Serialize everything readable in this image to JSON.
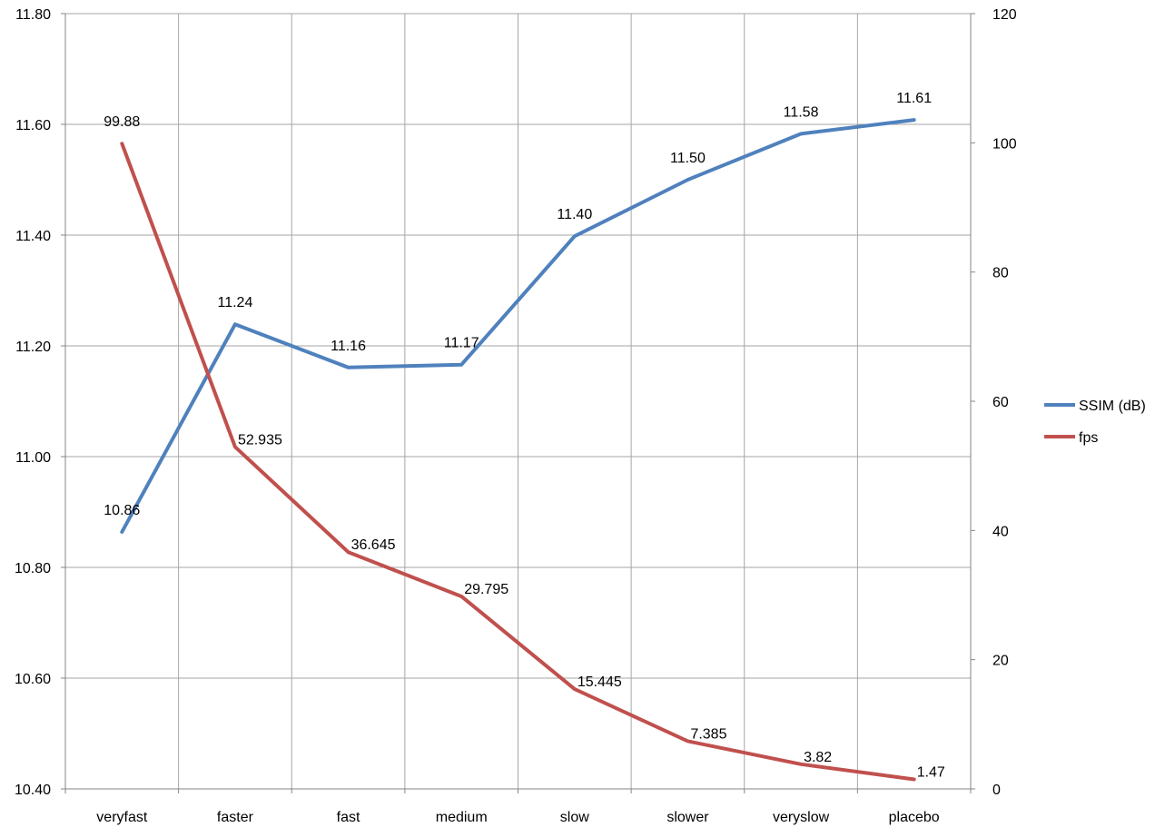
{
  "chart_data": {
    "type": "line",
    "title": "",
    "xlabel": "",
    "categories": [
      "veryfast",
      "faster",
      "fast",
      "medium",
      "slow",
      "slower",
      "veryslow",
      "placebo"
    ],
    "y_left": {
      "label": "",
      "min": 10.4,
      "max": 11.8,
      "step": 0.2,
      "ticks": [
        "10.40",
        "10.60",
        "10.80",
        "11.00",
        "11.20",
        "11.40",
        "11.60",
        "11.80"
      ]
    },
    "y_right": {
      "label": "",
      "min": 0,
      "max": 120,
      "step": 20,
      "ticks": [
        "0",
        "20",
        "40",
        "60",
        "80",
        "100",
        "120"
      ]
    },
    "grid": true,
    "legend_position": "right",
    "series": [
      {
        "name": "SSIM (dB)",
        "axis": "left",
        "color": "#4f81bd",
        "values": [
          10.864,
          11.239,
          11.161,
          11.166,
          11.398,
          11.5,
          11.583,
          11.608
        ],
        "labels": [
          "10.86",
          "11.24",
          "11.16",
          "11.17",
          "11.40",
          "11.50",
          "11.58",
          "11.61"
        ]
      },
      {
        "name": "fps",
        "axis": "right",
        "color": "#c0504d",
        "values": [
          99.88,
          52.935,
          36.645,
          29.795,
          15.445,
          7.385,
          3.82,
          1.47
        ],
        "labels": [
          "99.88",
          "52.935",
          "36.645",
          "29.795",
          "15.445",
          "7.385",
          "3.82",
          "1.47"
        ]
      }
    ]
  }
}
